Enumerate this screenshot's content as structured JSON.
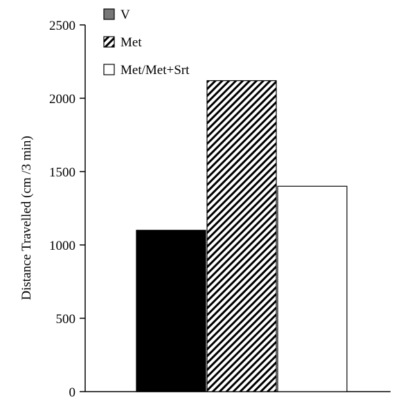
{
  "chart_data": {
    "type": "bar",
    "ylabel": "Distance Travelled (cm /3 min)",
    "ylim": [
      0,
      2500
    ],
    "yticks": [
      0,
      500,
      1000,
      1500,
      2000,
      2500
    ],
    "grid": false,
    "legend_position": "top-left",
    "series": [
      {
        "name": "V",
        "value": 1100,
        "fill": "solid",
        "legend_color": "#777777",
        "bar_color": "#000000"
      },
      {
        "name": "Met",
        "value": 2120,
        "fill": "hatch",
        "legend_color": "#000000",
        "bar_color": "#000000"
      },
      {
        "name": "Met/Met+Srt",
        "value": 1400,
        "fill": "empty",
        "legend_color": "#ffffff",
        "bar_color": "#ffffff"
      }
    ]
  }
}
